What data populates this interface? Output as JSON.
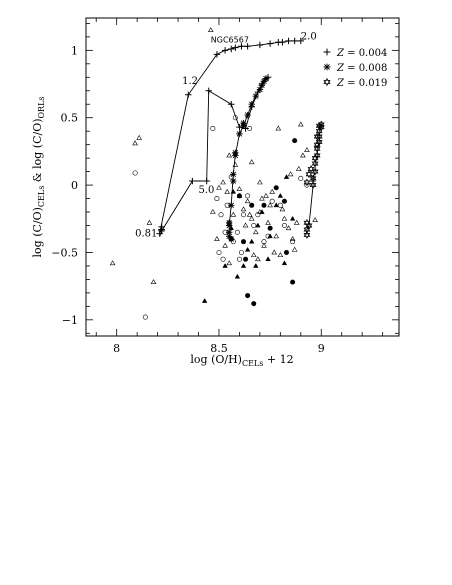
{
  "chart_data": {
    "type": "scatter",
    "xlabel": "log (O/H)",
    "xlabel_sub": "CELs",
    "xlabel_tail": " + 12",
    "ylabel_parts": [
      {
        "t": "log (C/O)",
        "sub": false
      },
      {
        "t": "CELs",
        "sub": true
      },
      {
        "t": " & log (C/O)",
        "sub": false
      },
      {
        "t": "ORLs",
        "sub": true
      }
    ],
    "xlim": [
      7.85,
      9.38
    ],
    "ylim": [
      -1.12,
      1.24
    ],
    "xticks": [
      8,
      8.5,
      9
    ],
    "yticks": [
      -1,
      -0.5,
      0,
      0.5,
      1
    ],
    "xtick_labels": [
      "8",
      "8.5",
      "9"
    ],
    "ytick_labels": [
      "−1",
      "−0.5",
      "0",
      "0.5",
      "1"
    ],
    "grid": false,
    "legend_position": "top-right",
    "legend": [
      {
        "symbol": "plus",
        "label_prefix": "Z",
        "label_value": " = 0.004"
      },
      {
        "symbol": "asterisk",
        "label_prefix": "Z",
        "label_value": " = 0.008"
      },
      {
        "symbol": "star",
        "label_prefix": "Z",
        "label_value": " = 0.019"
      }
    ],
    "annotations": [
      {
        "text": "NGC6567",
        "x": 8.46,
        "y": 1.06,
        "style": "small"
      },
      {
        "text": "2.0",
        "x": 8.9,
        "y": 1.08,
        "style": "normal"
      },
      {
        "text": "1.2",
        "x": 8.32,
        "y": 0.75,
        "style": "normal"
      },
      {
        "text": "5.0",
        "x": 8.4,
        "y": -0.06,
        "style": "normal"
      },
      {
        "text": "0.817",
        "x": 8.09,
        "y": -0.38,
        "style": "normal"
      }
    ],
    "model_tracks": [
      {
        "name": "",
        "marker": "plus",
        "x": [
          8.22,
          8.21,
          8.35,
          8.49,
          8.53,
          8.56,
          8.58,
          8.61,
          8.64,
          8.7,
          8.75,
          8.79,
          8.81,
          8.84,
          8.87,
          8.9
        ],
        "y": [
          -0.33,
          -0.36,
          0.67,
          0.97,
          1.0,
          1.01,
          1.02,
          1.03,
          1.03,
          1.04,
          1.05,
          1.06,
          1.06,
          1.07,
          1.07,
          1.07
        ]
      },
      {
        "name": "",
        "marker": "plus",
        "x": [
          8.22,
          8.22,
          8.37,
          8.44,
          8.45,
          8.56,
          8.6,
          8.63,
          8.66,
          8.69,
          8.71,
          8.72,
          8.73,
          8.74
        ],
        "y": [
          -0.31,
          -0.34,
          0.03,
          0.03,
          0.7,
          0.6,
          0.43,
          0.42,
          0.58,
          0.69,
          0.75,
          0.77,
          0.79,
          0.8
        ]
      },
      {
        "name": "",
        "marker": "asterisk",
        "x": [
          8.55,
          8.55,
          8.55,
          8.56,
          8.57,
          8.58,
          8.6,
          8.62,
          8.64,
          8.66,
          8.68,
          8.7,
          8.71,
          8.72,
          8.73
        ],
        "y": [
          -0.38,
          -0.35,
          -0.3,
          -0.15,
          0.08,
          0.22,
          0.38,
          0.44,
          0.52,
          0.6,
          0.66,
          0.71,
          0.74,
          0.77,
          0.79
        ]
      },
      {
        "name": "",
        "marker": "star",
        "x": [
          8.93,
          8.93,
          8.94,
          8.96,
          8.96,
          8.97,
          8.97,
          8.98,
          8.98,
          8.99,
          8.99,
          8.99,
          9.0,
          9.0
        ],
        "y": [
          -0.37,
          -0.33,
          -0.3,
          0.0,
          0.05,
          0.1,
          0.16,
          0.22,
          0.27,
          0.32,
          0.36,
          0.4,
          0.43,
          0.45
        ]
      }
    ],
    "extra_markers": [
      {
        "marker": "star",
        "x": [
          8.93,
          8.93,
          8.94,
          8.95,
          8.97,
          8.98,
          8.98,
          8.99
        ],
        "y": [
          -0.28,
          0.02,
          0.08,
          0.12,
          0.2,
          0.3,
          0.36,
          0.44
        ]
      },
      {
        "marker": "asterisk",
        "x": [
          8.55,
          8.56,
          8.57,
          8.58,
          8.62
        ],
        "y": [
          -0.28,
          -0.4,
          0.03,
          0.24,
          0.46
        ]
      }
    ],
    "series": [
      {
        "name": "",
        "marker": "open-triangle",
        "x": [
          7.98,
          8.09,
          8.11,
          8.16,
          8.18,
          8.46,
          8.52,
          8.55,
          8.58,
          8.6,
          8.62,
          8.64,
          8.65,
          8.66,
          8.68,
          8.7,
          8.72,
          8.74,
          8.75,
          8.77,
          8.78,
          8.8,
          8.82,
          8.84,
          8.86,
          8.88,
          8.5,
          8.47,
          8.49,
          8.53,
          8.55,
          8.57,
          8.63,
          8.71,
          8.76,
          8.81,
          8.87,
          8.93,
          8.96,
          8.7,
          8.66,
          8.6,
          8.54,
          8.89,
          8.91,
          8.9,
          8.73,
          8.79,
          8.85,
          8.97,
          8.67,
          8.69
        ],
        "y": [
          -0.58,
          0.31,
          0.35,
          -0.28,
          -0.72,
          1.15,
          0.02,
          0.22,
          0.15,
          -0.08,
          -0.18,
          -0.12,
          -0.22,
          -0.25,
          -0.35,
          -0.2,
          -0.45,
          -0.28,
          -0.15,
          -0.5,
          -0.38,
          -0.52,
          -0.25,
          -0.32,
          -0.4,
          -0.28,
          -0.02,
          -0.2,
          -0.4,
          -0.45,
          -0.58,
          -0.22,
          -0.3,
          -0.1,
          -0.05,
          -0.18,
          -0.48,
          0.26,
          0.04,
          0.02,
          0.17,
          -0.03,
          -0.05,
          0.12,
          0.22,
          0.45,
          -0.08,
          0.42,
          0.08,
          -0.26,
          -0.52,
          -0.55
        ]
      },
      {
        "name": "",
        "marker": "open-circle",
        "x": [
          8.09,
          8.14,
          8.47,
          8.49,
          8.51,
          8.53,
          8.55,
          8.57,
          8.58,
          8.6,
          8.62,
          8.65,
          8.67,
          8.72,
          8.76,
          8.8,
          8.86,
          8.9,
          8.5,
          8.52,
          8.54,
          8.59,
          8.61,
          8.69,
          8.74,
          8.82,
          8.93,
          8.56,
          8.64
        ],
        "y": [
          0.09,
          -0.98,
          0.42,
          -0.1,
          -0.22,
          -0.35,
          -0.28,
          -0.42,
          0.5,
          -0.55,
          -0.22,
          0.42,
          -0.3,
          -0.42,
          -0.12,
          -0.15,
          -0.42,
          0.05,
          -0.5,
          -0.55,
          -0.15,
          -0.35,
          -0.5,
          -0.22,
          -0.38,
          -0.3,
          0.0,
          0.06,
          -0.08
        ]
      },
      {
        "name": "",
        "marker": "filled-triangle",
        "x": [
          8.43,
          8.53,
          8.57,
          8.59,
          8.62,
          8.66,
          8.69,
          8.71,
          8.75,
          8.78,
          8.82,
          8.56,
          8.64,
          8.74,
          8.83,
          8.68,
          8.8,
          8.86
        ],
        "y": [
          -0.86,
          -0.6,
          -0.05,
          -0.68,
          -0.6,
          -0.42,
          -0.3,
          -0.2,
          -0.38,
          -0.15,
          -0.58,
          -0.32,
          -0.48,
          -0.55,
          0.06,
          -0.6,
          -0.08,
          -0.25
        ]
      },
      {
        "name": "",
        "marker": "filled-circle",
        "x": [
          8.56,
          8.6,
          8.62,
          8.63,
          8.66,
          8.67,
          8.72,
          8.75,
          8.78,
          8.82,
          8.83,
          8.86,
          8.87,
          8.64
        ],
        "y": [
          -0.4,
          -0.08,
          -0.42,
          -0.55,
          -0.15,
          -0.88,
          -0.15,
          -0.32,
          -0.02,
          -0.12,
          -0.5,
          -0.72,
          0.33,
          -0.82
        ]
      }
    ]
  }
}
